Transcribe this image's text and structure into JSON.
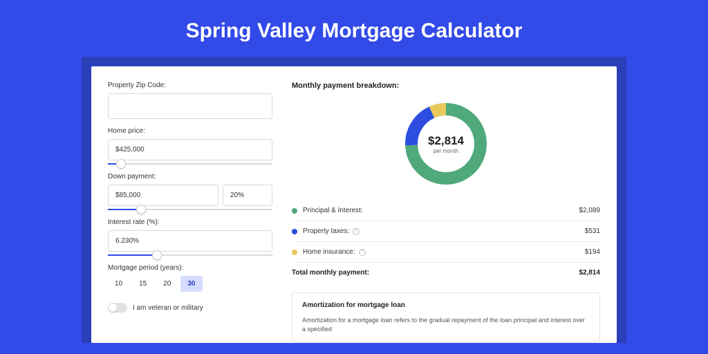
{
  "page": {
    "title": "Spring Valley Mortgage Calculator",
    "background_color": "#324ae8",
    "card_frame_color": "#2a3fb8"
  },
  "form": {
    "zip": {
      "label": "Property Zip Code:",
      "value": ""
    },
    "home_price": {
      "label": "Home price:",
      "value": "$425,000",
      "slider_pct": 8
    },
    "down_payment": {
      "label": "Down payment:",
      "amount": "$85,000",
      "percent": "20%",
      "slider_pct": 20
    },
    "interest_rate": {
      "label": "Interest rate (%):",
      "value": "6.230%",
      "slider_pct": 30
    },
    "period": {
      "label": "Mortgage period (years):",
      "options": [
        "10",
        "15",
        "20",
        "30"
      ],
      "selected": "30"
    },
    "veteran": {
      "label": "I am veteran or military",
      "checked": false
    }
  },
  "breakdown": {
    "title": "Monthly payment breakdown:",
    "center_amount": "$2,814",
    "center_sub": "per month",
    "items": [
      {
        "label": "Principal & Interest:",
        "value": "$2,089",
        "amount": 2089,
        "color": "#4fa97a",
        "info": false
      },
      {
        "label": "Property taxes:",
        "value": "$531",
        "amount": 531,
        "color": "#2d4de0",
        "info": true
      },
      {
        "label": "Home insurance:",
        "value": "$194",
        "amount": 194,
        "color": "#e8c95a",
        "info": true
      }
    ],
    "total_label": "Total monthly payment:",
    "total_value": "$2,814",
    "donut": {
      "radius": 50,
      "stroke_width": 18,
      "background_color": "#ffffff"
    }
  },
  "amortization": {
    "title": "Amortization for mortgage loan",
    "text": "Amortization for a mortgage loan refers to the gradual repayment of the loan principal and interest over a specified"
  }
}
